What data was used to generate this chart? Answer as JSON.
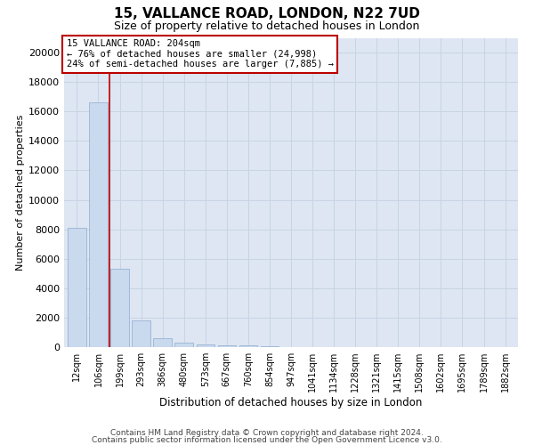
{
  "title1": "15, VALLANCE ROAD, LONDON, N22 7UD",
  "title2": "Size of property relative to detached houses in London",
  "xlabel": "Distribution of detached houses by size in London",
  "ylabel": "Number of detached properties",
  "categories": [
    "12sqm",
    "106sqm",
    "199sqm",
    "293sqm",
    "386sqm",
    "480sqm",
    "573sqm",
    "667sqm",
    "760sqm",
    "854sqm",
    "947sqm",
    "1041sqm",
    "1134sqm",
    "1228sqm",
    "1321sqm",
    "1415sqm",
    "1508sqm",
    "1602sqm",
    "1695sqm",
    "1789sqm",
    "1882sqm"
  ],
  "bar_heights": [
    8100,
    16600,
    5300,
    1800,
    600,
    300,
    200,
    150,
    100,
    80,
    0,
    0,
    0,
    0,
    0,
    0,
    0,
    0,
    0,
    0,
    0
  ],
  "bar_color": "#c9d9ee",
  "bar_edge_color": "#9ab3d4",
  "vline_color": "#bb0000",
  "vline_x": 1.5,
  "annotation_line1": "15 VALLANCE ROAD: 204sqm",
  "annotation_line2": "← 76% of detached houses are smaller (24,998)",
  "annotation_line3": "24% of semi-detached houses are larger (7,885) →",
  "annotation_box_facecolor": "#ffffff",
  "annotation_box_edgecolor": "#bb0000",
  "ylim": [
    0,
    21000
  ],
  "yticks": [
    0,
    2000,
    4000,
    6000,
    8000,
    10000,
    12000,
    14000,
    16000,
    18000,
    20000
  ],
  "grid_color": "#c8d4e4",
  "plot_bg_color": "#dde6f2",
  "footer1": "Contains HM Land Registry data © Crown copyright and database right 2024.",
  "footer2": "Contains public sector information licensed under the Open Government Licence v3.0."
}
